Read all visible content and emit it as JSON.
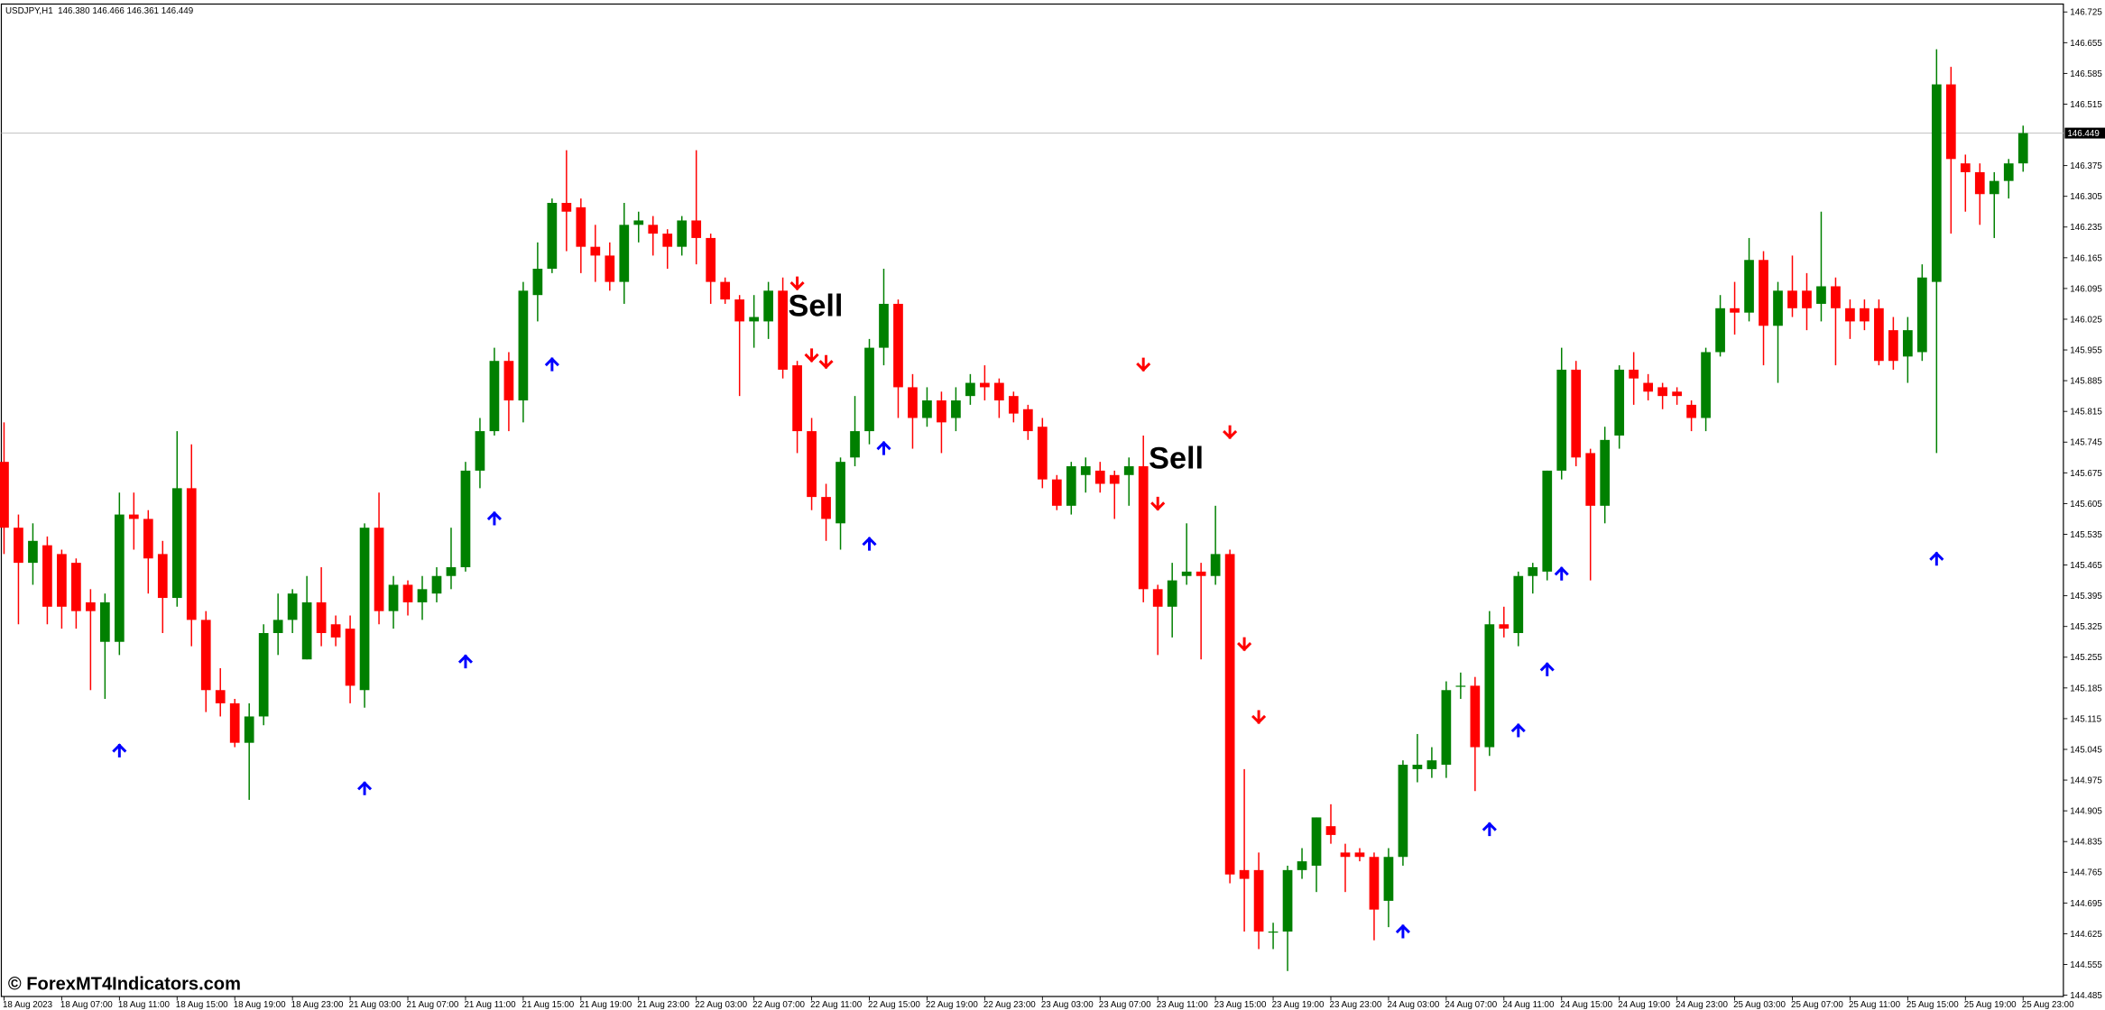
{
  "chart_data": {
    "type": "candlestick",
    "header": "USDJPY,H1  146.380 146.466 146.361 146.449",
    "watermark": "© ForexMT4Indicators.com",
    "up_color": "#008000",
    "down_color": "#ff0000",
    "buy_color": "#0000ff",
    "sell_color": "#ff0000",
    "ylim": [
      144.482,
      146.743
    ],
    "yticks": [
      146.725,
      146.655,
      146.585,
      146.515,
      146.375,
      146.305,
      146.235,
      146.165,
      146.095,
      146.025,
      145.955,
      145.885,
      145.815,
      145.745,
      145.675,
      145.605,
      145.535,
      145.465,
      145.395,
      145.325,
      145.255,
      145.185,
      145.115,
      145.045,
      144.975,
      144.905,
      144.835,
      144.765,
      144.695,
      144.625,
      144.555,
      144.485
    ],
    "current_price": 146.449,
    "categories": [
      "18 Aug 2023",
      null,
      null,
      null,
      "18 Aug 07:00",
      null,
      null,
      null,
      "18 Aug 11:00",
      null,
      null,
      null,
      "18 Aug 15:00",
      null,
      null,
      null,
      "18 Aug 19:00",
      null,
      null,
      null,
      "18 Aug 23:00",
      null,
      null,
      null,
      "21 Aug 03:00",
      null,
      null,
      null,
      "21 Aug 07:00",
      null,
      null,
      null,
      "21 Aug 11:00",
      null,
      null,
      null,
      "21 Aug 15:00",
      null,
      null,
      null,
      "21 Aug 19:00",
      null,
      null,
      null,
      "21 Aug 23:00",
      null,
      null,
      null,
      "22 Aug 03:00",
      null,
      null,
      null,
      "22 Aug 07:00",
      null,
      null,
      null,
      "22 Aug 11:00",
      null,
      null,
      null,
      "22 Aug 15:00",
      null,
      null,
      null,
      "22 Aug 19:00",
      null,
      null,
      null,
      "22 Aug 23:00",
      null,
      null,
      null,
      "23 Aug 03:00",
      null,
      null,
      null,
      "23 Aug 07:00",
      null,
      null,
      null,
      "23 Aug 11:00",
      null,
      null,
      null,
      "23 Aug 15:00",
      null,
      null,
      null,
      "23 Aug 19:00",
      null,
      null,
      null,
      "23 Aug 23:00",
      null,
      null,
      null,
      "24 Aug 03:00",
      null,
      null,
      null,
      "24 Aug 07:00",
      null,
      null,
      null,
      "24 Aug 11:00",
      null,
      null,
      null,
      "24 Aug 15:00",
      null,
      null,
      null,
      "24 Aug 19:00",
      null,
      null,
      null,
      "24 Aug 23:00",
      null,
      null,
      null,
      "25 Aug 03:00",
      null,
      null,
      null,
      "25 Aug 07:00",
      null,
      null,
      null,
      "25 Aug 11:00",
      null,
      null,
      null,
      "25 Aug 15:00",
      null,
      null,
      null,
      "25 Aug 19:00",
      null,
      null,
      null,
      "25 Aug 23:00"
    ],
    "candles": [
      [
        145.7,
        145.79,
        145.49,
        145.55
      ],
      [
        145.55,
        145.58,
        145.33,
        145.47
      ],
      [
        145.47,
        145.56,
        145.42,
        145.52
      ],
      [
        145.51,
        145.53,
        145.33,
        145.37
      ],
      [
        145.49,
        145.5,
        145.32,
        145.37
      ],
      [
        145.47,
        145.48,
        145.32,
        145.36
      ],
      [
        145.38,
        145.41,
        145.18,
        145.36
      ],
      [
        145.29,
        145.4,
        145.16,
        145.38
      ],
      [
        145.29,
        145.63,
        145.26,
        145.58
      ],
      [
        145.58,
        145.63,
        145.5,
        145.57
      ],
      [
        145.57,
        145.59,
        145.4,
        145.48
      ],
      [
        145.49,
        145.52,
        145.31,
        145.39
      ],
      [
        145.39,
        145.77,
        145.37,
        145.64
      ],
      [
        145.64,
        145.74,
        145.28,
        145.34
      ],
      [
        145.34,
        145.36,
        145.13,
        145.18
      ],
      [
        145.18,
        145.23,
        145.12,
        145.15
      ],
      [
        145.15,
        145.16,
        145.05,
        145.06
      ],
      [
        145.06,
        145.15,
        144.93,
        145.12
      ],
      [
        145.12,
        145.33,
        145.1,
        145.31
      ],
      [
        145.31,
        145.4,
        145.26,
        145.34
      ],
      [
        145.34,
        145.41,
        145.31,
        145.4
      ],
      [
        145.25,
        145.44,
        145.25,
        145.38
      ],
      [
        145.38,
        145.46,
        145.28,
        145.31
      ],
      [
        145.33,
        145.35,
        145.28,
        145.3
      ],
      [
        145.32,
        145.35,
        145.15,
        145.19
      ],
      [
        145.18,
        145.56,
        145.14,
        145.55
      ],
      [
        145.55,
        145.63,
        145.33,
        145.36
      ],
      [
        145.36,
        145.44,
        145.32,
        145.42
      ],
      [
        145.42,
        145.43,
        145.35,
        145.38
      ],
      [
        145.38,
        145.44,
        145.34,
        145.41
      ],
      [
        145.4,
        145.46,
        145.38,
        145.44
      ],
      [
        145.44,
        145.55,
        145.41,
        145.46
      ],
      [
        145.46,
        145.7,
        145.45,
        145.68
      ],
      [
        145.68,
        145.8,
        145.64,
        145.77
      ],
      [
        145.77,
        145.96,
        145.76,
        145.93
      ],
      [
        145.93,
        145.95,
        145.77,
        145.84
      ],
      [
        145.84,
        146.11,
        145.79,
        146.09
      ],
      [
        146.08,
        146.2,
        146.02,
        146.14
      ],
      [
        146.14,
        146.3,
        146.13,
        146.29
      ],
      [
        146.29,
        146.41,
        146.18,
        146.27
      ],
      [
        146.28,
        146.3,
        146.13,
        146.19
      ],
      [
        146.19,
        146.24,
        146.11,
        146.17
      ],
      [
        146.17,
        146.2,
        146.09,
        146.11
      ],
      [
        146.11,
        146.29,
        146.06,
        146.24
      ],
      [
        146.24,
        146.27,
        146.2,
        146.25
      ],
      [
        146.24,
        146.26,
        146.17,
        146.22
      ],
      [
        146.22,
        146.23,
        146.14,
        146.19
      ],
      [
        146.19,
        146.26,
        146.17,
        146.25
      ],
      [
        146.25,
        146.41,
        146.15,
        146.21
      ],
      [
        146.21,
        146.22,
        146.06,
        146.11
      ],
      [
        146.11,
        146.12,
        146.06,
        146.07
      ],
      [
        146.07,
        146.08,
        145.85,
        146.02
      ],
      [
        146.02,
        146.08,
        145.96,
        146.03
      ],
      [
        146.02,
        146.11,
        145.98,
        146.09
      ],
      [
        146.09,
        146.12,
        145.89,
        145.91
      ],
      [
        145.92,
        145.93,
        145.72,
        145.77
      ],
      [
        145.77,
        145.8,
        145.59,
        145.62
      ],
      [
        145.62,
        145.65,
        145.52,
        145.57
      ],
      [
        145.56,
        145.71,
        145.5,
        145.7
      ],
      [
        145.71,
        145.85,
        145.69,
        145.77
      ],
      [
        145.77,
        145.98,
        145.74,
        145.96
      ],
      [
        145.96,
        146.14,
        145.92,
        146.06
      ],
      [
        146.06,
        146.07,
        145.8,
        145.87
      ],
      [
        145.87,
        145.9,
        145.73,
        145.8
      ],
      [
        145.8,
        145.87,
        145.78,
        145.84
      ],
      [
        145.84,
        145.86,
        145.72,
        145.79
      ],
      [
        145.8,
        145.87,
        145.77,
        145.84
      ],
      [
        145.85,
        145.9,
        145.83,
        145.88
      ],
      [
        145.88,
        145.92,
        145.84,
        145.87
      ],
      [
        145.88,
        145.89,
        145.8,
        145.84
      ],
      [
        145.85,
        145.86,
        145.79,
        145.81
      ],
      [
        145.82,
        145.83,
        145.75,
        145.77
      ],
      [
        145.78,
        145.8,
        145.64,
        145.66
      ],
      [
        145.66,
        145.67,
        145.59,
        145.6
      ],
      [
        145.6,
        145.7,
        145.58,
        145.69
      ],
      [
        145.67,
        145.71,
        145.63,
        145.69
      ],
      [
        145.68,
        145.7,
        145.63,
        145.65
      ],
      [
        145.67,
        145.68,
        145.57,
        145.65
      ],
      [
        145.67,
        145.71,
        145.6,
        145.69
      ],
      [
        145.69,
        145.76,
        145.38,
        145.41
      ],
      [
        145.41,
        145.42,
        145.26,
        145.37
      ],
      [
        145.37,
        145.47,
        145.3,
        145.43
      ],
      [
        145.44,
        145.56,
        145.42,
        145.45
      ],
      [
        145.45,
        145.47,
        145.25,
        145.44
      ],
      [
        145.44,
        145.6,
        145.42,
        145.49
      ],
      [
        145.49,
        145.5,
        144.74,
        144.76
      ],
      [
        144.77,
        145.0,
        144.63,
        144.75
      ],
      [
        144.77,
        144.81,
        144.59,
        144.63
      ],
      [
        144.63,
        144.65,
        144.59,
        144.63
      ],
      [
        144.63,
        144.78,
        144.54,
        144.77
      ],
      [
        144.77,
        144.82,
        144.75,
        144.79
      ],
      [
        144.78,
        144.89,
        144.72,
        144.89
      ],
      [
        144.87,
        144.92,
        144.83,
        144.85
      ],
      [
        144.81,
        144.83,
        144.72,
        144.8
      ],
      [
        144.81,
        144.82,
        144.79,
        144.8
      ],
      [
        144.8,
        144.81,
        144.61,
        144.68
      ],
      [
        144.7,
        144.82,
        144.64,
        144.8
      ],
      [
        144.8,
        145.02,
        144.78,
        145.01
      ],
      [
        145.0,
        145.08,
        144.97,
        145.01
      ],
      [
        145.0,
        145.05,
        144.98,
        145.02
      ],
      [
        145.01,
        145.2,
        144.98,
        145.18
      ],
      [
        145.19,
        145.22,
        145.16,
        145.19
      ],
      [
        145.19,
        145.21,
        144.95,
        145.05
      ],
      [
        145.05,
        145.36,
        145.03,
        145.33
      ],
      [
        145.33,
        145.37,
        145.3,
        145.32
      ],
      [
        145.31,
        145.45,
        145.28,
        145.44
      ],
      [
        145.44,
        145.47,
        145.4,
        145.46
      ],
      [
        145.45,
        145.68,
        145.43,
        145.68
      ],
      [
        145.68,
        145.96,
        145.66,
        145.91
      ],
      [
        145.91,
        145.93,
        145.69,
        145.71
      ],
      [
        145.72,
        145.73,
        145.43,
        145.6
      ],
      [
        145.6,
        145.78,
        145.56,
        145.75
      ],
      [
        145.76,
        145.92,
        145.73,
        145.91
      ],
      [
        145.91,
        145.95,
        145.83,
        145.89
      ],
      [
        145.88,
        145.9,
        145.84,
        145.86
      ],
      [
        145.87,
        145.88,
        145.82,
        145.85
      ],
      [
        145.86,
        145.87,
        145.83,
        145.85
      ],
      [
        145.83,
        145.84,
        145.77,
        145.8
      ],
      [
        145.8,
        145.96,
        145.77,
        145.95
      ],
      [
        145.95,
        146.08,
        145.94,
        146.05
      ],
      [
        146.05,
        146.11,
        145.99,
        146.04
      ],
      [
        146.04,
        146.21,
        146.02,
        146.16
      ],
      [
        146.16,
        146.18,
        145.92,
        146.01
      ],
      [
        146.01,
        146.11,
        145.88,
        146.09
      ],
      [
        146.09,
        146.17,
        146.03,
        146.05
      ],
      [
        146.09,
        146.13,
        146.0,
        146.05
      ],
      [
        146.06,
        146.27,
        146.02,
        146.1
      ],
      [
        146.1,
        146.12,
        145.92,
        146.05
      ],
      [
        146.05,
        146.07,
        145.98,
        146.02
      ],
      [
        146.05,
        146.07,
        146.0,
        146.02
      ],
      [
        146.05,
        146.07,
        145.92,
        145.93
      ],
      [
        146.0,
        146.03,
        145.91,
        145.93
      ],
      [
        145.94,
        146.03,
        145.88,
        146.0
      ],
      [
        145.95,
        146.15,
        145.93,
        146.12
      ],
      [
        146.11,
        146.64,
        145.72,
        146.56
      ],
      [
        146.56,
        146.6,
        146.22,
        146.39
      ],
      [
        146.38,
        146.4,
        146.27,
        146.36
      ],
      [
        146.36,
        146.38,
        146.24,
        146.31
      ],
      [
        146.31,
        146.36,
        146.21,
        146.34
      ],
      [
        146.34,
        146.39,
        146.3,
        146.38
      ],
      [
        146.38,
        146.466,
        146.361,
        146.449
      ]
    ],
    "buy_signals": [
      null,
      null,
      null,
      null,
      null,
      null,
      null,
      null,
      145.042,
      null,
      null,
      null,
      null,
      null,
      null,
      null,
      null,
      null,
      null,
      null,
      null,
      null,
      null,
      null,
      null,
      144.956,
      null,
      null,
      null,
      null,
      null,
      null,
      145.245,
      null,
      145.571,
      null,
      null,
      null,
      145.922,
      null,
      null,
      null,
      null,
      null,
      null,
      null,
      null,
      null,
      null,
      null,
      null,
      null,
      null,
      null,
      null,
      null,
      null,
      null,
      null,
      null,
      145.513,
      145.731,
      null,
      null,
      null,
      null,
      null,
      null,
      null,
      null,
      null,
      null,
      null,
      null,
      null,
      null,
      null,
      null,
      null,
      null,
      null,
      null,
      null,
      null,
      null,
      null,
      null,
      null,
      null,
      null,
      null,
      null,
      null,
      null,
      null,
      null,
      null,
      144.63,
      null,
      null,
      null,
      null,
      null,
      144.863,
      null,
      145.088,
      null,
      145.227,
      145.445,
      null,
      null,
      null,
      null,
      null,
      null,
      null,
      null,
      null,
      null,
      null,
      null,
      null,
      null,
      null,
      null,
      null,
      null,
      null,
      null,
      null,
      null,
      null,
      null,
      null,
      145.479,
      null,
      null,
      null,
      null,
      null,
      null
    ],
    "sell_signals": [
      null,
      null,
      null,
      null,
      null,
      null,
      null,
      null,
      null,
      null,
      null,
      null,
      null,
      null,
      null,
      null,
      null,
      null,
      null,
      null,
      null,
      null,
      null,
      null,
      null,
      null,
      null,
      null,
      null,
      null,
      null,
      null,
      null,
      null,
      null,
      null,
      null,
      null,
      null,
      null,
      null,
      null,
      null,
      null,
      null,
      null,
      null,
      null,
      null,
      null,
      null,
      null,
      null,
      null,
      null,
      146.107,
      145.943,
      145.928,
      null,
      null,
      null,
      null,
      null,
      null,
      null,
      null,
      null,
      null,
      null,
      null,
      null,
      null,
      null,
      null,
      null,
      null,
      null,
      null,
      null,
      145.922,
      145.605,
      null,
      null,
      null,
      null,
      145.768,
      145.285,
      145.119,
      null,
      null,
      null,
      null,
      null,
      null,
      null,
      null,
      null,
      null,
      null,
      null,
      null,
      null,
      null,
      null,
      null,
      null,
      null,
      null,
      null,
      null,
      null,
      null,
      null,
      null,
      null,
      null,
      null,
      null,
      null,
      null,
      null,
      null,
      null,
      null,
      null,
      null,
      null,
      null,
      null,
      null,
      null,
      null,
      null,
      null,
      null,
      null,
      null,
      null,
      null,
      null,
      null
    ],
    "annotations": [
      {
        "text": "Sell",
        "bar": 54,
        "price": 146.057
      },
      {
        "text": "Sell",
        "bar": 79,
        "price": 145.71
      }
    ]
  }
}
